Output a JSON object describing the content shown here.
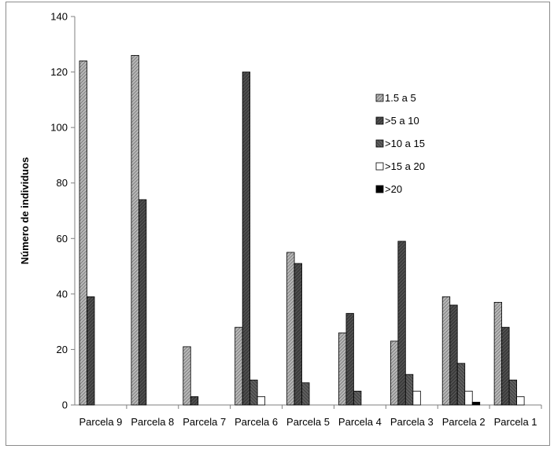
{
  "chart_data": {
    "type": "bar",
    "title": "",
    "xlabel": "",
    "ylabel": "Número de individuos",
    "ylim": [
      0,
      140
    ],
    "yticks": [
      0,
      20,
      40,
      60,
      80,
      100,
      120,
      140
    ],
    "grid": false,
    "legend_position": "right",
    "categories": [
      "Parcela 9",
      "Parcela 8",
      "Parcela 7",
      "Parcela 6",
      "Parcela 5",
      "Parcela 4",
      "Parcela 3",
      "Parcela 2",
      "Parcela 1"
    ],
    "series": [
      {
        "name": "1.5 a 5",
        "values": [
          124,
          126,
          21,
          28,
          55,
          26,
          23,
          39,
          37
        ],
        "fill": "pat-light"
      },
      {
        "name": ">5 a 10",
        "values": [
          39,
          74,
          3,
          120,
          51,
          33,
          59,
          36,
          28
        ],
        "fill": "pat-dark"
      },
      {
        "name": ">10 a 15",
        "values": [
          0,
          0,
          0,
          9,
          8,
          5,
          11,
          15,
          9
        ],
        "fill": "pat-mid"
      },
      {
        "name": ">15 a 20",
        "values": [
          0,
          0,
          0,
          3,
          0,
          0,
          5,
          5,
          3
        ],
        "fill": "#ffffff"
      },
      {
        "name": ">20",
        "values": [
          0,
          0,
          0,
          0,
          0,
          0,
          0,
          1,
          0
        ],
        "fill": "#000000"
      }
    ]
  }
}
